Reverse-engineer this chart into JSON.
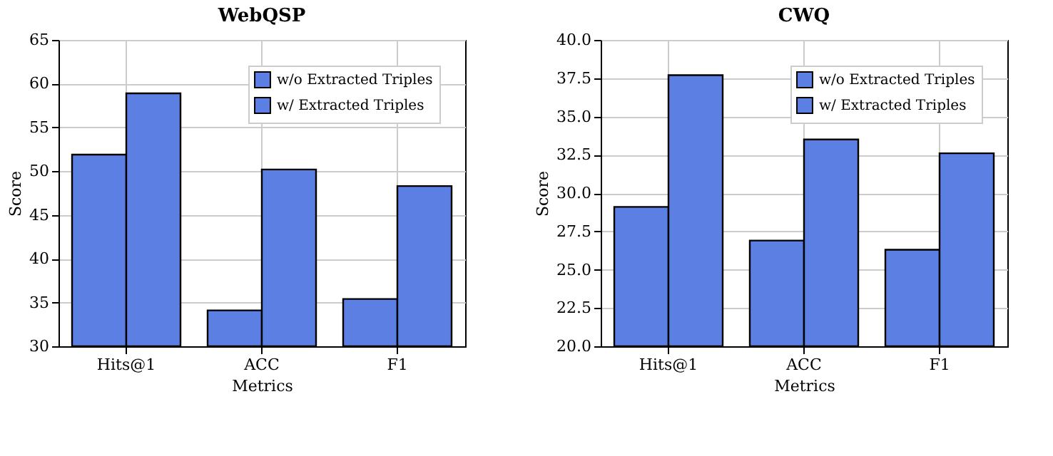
{
  "chart_data": [
    {
      "type": "bar",
      "title": "WebQSP",
      "xlabel": "Metrics",
      "ylabel": "Score",
      "categories": [
        "Hits@1",
        "ACC",
        "F1"
      ],
      "ylim": [
        30,
        65
      ],
      "yticks": [
        30,
        35,
        40,
        45,
        50,
        55,
        60,
        65
      ],
      "grid": true,
      "legend": "top right",
      "series": [
        {
          "name": "w/o Extracted Triples",
          "color": "#5b7fe3",
          "values": [
            51.9,
            34.1,
            35.4
          ]
        },
        {
          "name": "w/ Extracted Triples",
          "color": "#5b7fe3",
          "values": [
            58.9,
            50.2,
            48.3
          ]
        }
      ]
    },
    {
      "type": "bar",
      "title": "CWQ",
      "xlabel": "Metrics",
      "ylabel": "Score",
      "categories": [
        "Hits@1",
        "ACC",
        "F1"
      ],
      "ylim": [
        20,
        40
      ],
      "yticks": [
        {
          "value": 20,
          "label": "20.0"
        },
        22.5,
        {
          "value": 25,
          "label": "25.0"
        },
        27.5,
        {
          "value": 30,
          "label": "30.0"
        },
        32.5,
        {
          "value": 35,
          "label": "35.0"
        },
        37.5,
        {
          "value": 40,
          "label": "40.0"
        }
      ],
      "grid": true,
      "legend": "top right",
      "series": [
        {
          "name": "w/o Extracted Triples",
          "color": "#5b7fe3",
          "values": [
            29.1,
            26.9,
            26.3
          ]
        },
        {
          "name": "w/ Extracted Triples",
          "color": "#5b7fe3",
          "values": [
            37.7,
            33.5,
            32.6
          ]
        }
      ]
    }
  ]
}
